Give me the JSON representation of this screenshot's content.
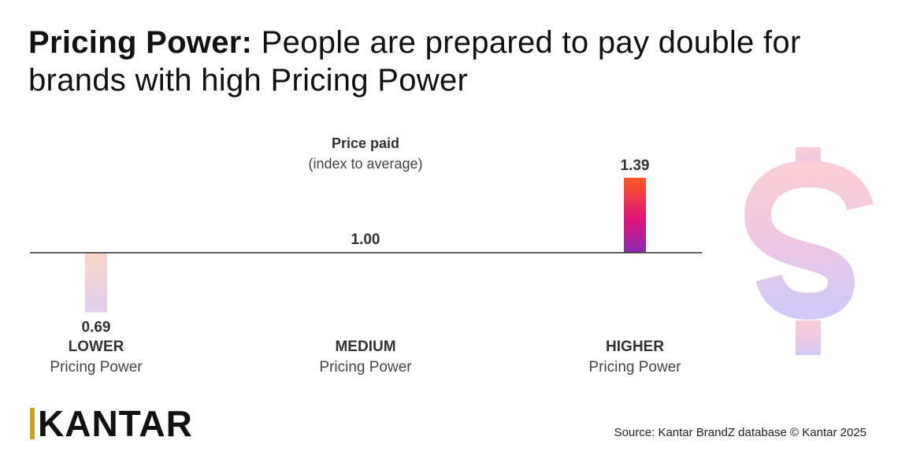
{
  "title": {
    "bold": "Pricing Power:",
    "rest": " People are prepared to pay double for brands with high Pricing Power"
  },
  "chart_data": {
    "type": "bar",
    "title": "Price paid",
    "subtitle": "(index to average)",
    "baseline": 1.0,
    "baseline_label": "1.00",
    "categories": [
      {
        "level": "LOWER",
        "sub": "Pricing Power"
      },
      {
        "level": "MEDIUM",
        "sub": "Pricing Power"
      },
      {
        "level": "HIGHER",
        "sub": "Pricing Power"
      }
    ],
    "values": [
      0.69,
      1.0,
      1.39
    ],
    "value_labels": [
      "0.69",
      "1.00",
      "1.39"
    ],
    "colors": {
      "lower_top": "#fcd5c8",
      "lower_bottom": "#e0cff0",
      "higher_top": "#ff5a1f",
      "higher_mid": "#e0137a",
      "higher_bottom": "#8a2bb5",
      "baseline": "#333333"
    }
  },
  "logo": "KANTAR",
  "source": "Source: Kantar BrandZ database © Kantar 2025",
  "decor": {
    "dollar_icon": "dollar-sign-icon"
  }
}
